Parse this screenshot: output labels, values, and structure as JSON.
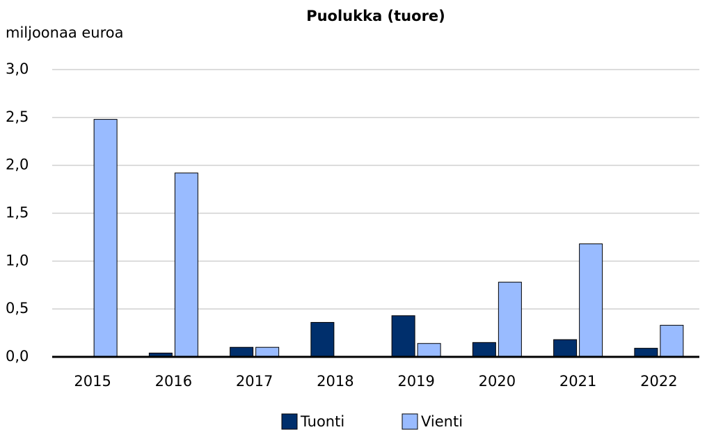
{
  "chart_data": {
    "type": "bar",
    "title": "Puolukka (tuore)",
    "y_axis_label": "miljoonaa euroa",
    "categories": [
      "2015",
      "2016",
      "2017",
      "2018",
      "2019",
      "2020",
      "2021",
      "2022"
    ],
    "series": [
      {
        "name": "Tuonti",
        "color": "#002f6c",
        "values": [
          0,
          0.04,
          0.1,
          0.36,
          0.43,
          0.15,
          0.18,
          0.09
        ]
      },
      {
        "name": "Vienti",
        "color": "#99bbff",
        "values": [
          2.48,
          1.92,
          0.1,
          0,
          0.14,
          0.78,
          1.18,
          0.33
        ]
      }
    ],
    "ylim": [
      0,
      3
    ],
    "yticks": [
      {
        "value": 0,
        "label": "0,0"
      },
      {
        "value": 0.5,
        "label": "0,5"
      },
      {
        "value": 1,
        "label": "1,0"
      },
      {
        "value": 1.5,
        "label": "1,5"
      },
      {
        "value": 2,
        "label": "2,0"
      },
      {
        "value": 2.5,
        "label": "2,5"
      },
      {
        "value": 3,
        "label": "3,0"
      }
    ],
    "grid": true,
    "legend": "bottom"
  }
}
